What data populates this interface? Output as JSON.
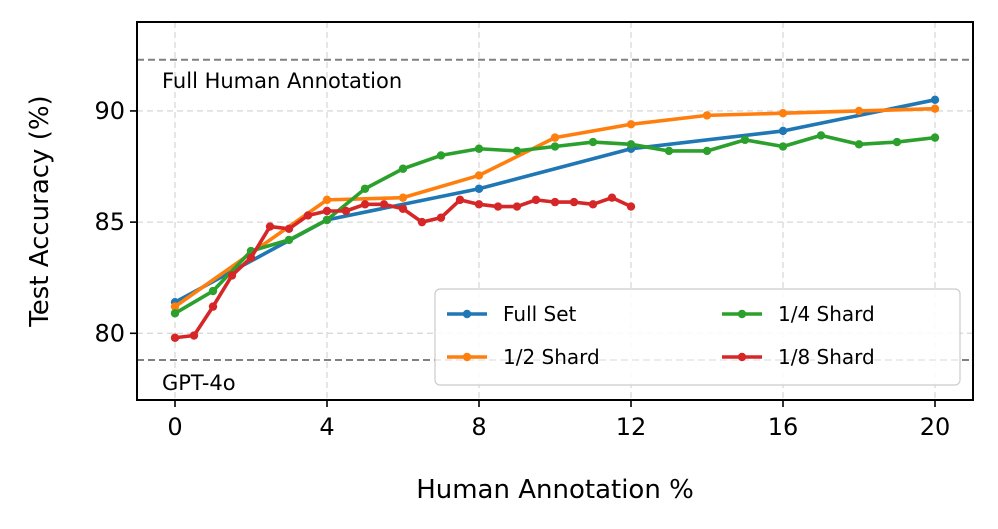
{
  "chart_data": {
    "type": "line",
    "title": "",
    "xlabel": "Human Annotation %",
    "ylabel": "Test Accuracy (%)",
    "xlim": [
      -1,
      21
    ],
    "ylim": [
      77,
      94
    ],
    "xticks": [
      0,
      4,
      8,
      12,
      16,
      20
    ],
    "yticks": [
      80,
      85,
      90
    ],
    "grid": true,
    "legend_position": "lower-right",
    "reference_lines": [
      {
        "name": "Full Human Annotation",
        "y": 92.3
      },
      {
        "name": "GPT-4o",
        "y": 78.8
      }
    ],
    "series": [
      {
        "name": "Full Set",
        "color": "#1f77b4",
        "x": [
          0,
          4,
          8,
          12,
          16,
          20
        ],
        "values": [
          81.4,
          85.1,
          86.5,
          88.3,
          89.1,
          90.5
        ]
      },
      {
        "name": "1/2 Shard",
        "color": "#ff7f0e",
        "x": [
          0,
          2,
          4,
          6,
          8,
          10,
          12,
          14,
          16,
          18,
          20
        ],
        "values": [
          81.2,
          83.6,
          86.0,
          86.1,
          87.1,
          88.8,
          89.4,
          89.8,
          89.9,
          90.0,
          90.1
        ]
      },
      {
        "name": "1/4 Shard",
        "color": "#2ca02c",
        "x": [
          0,
          1,
          2,
          3,
          4,
          5,
          6,
          7,
          8,
          9,
          10,
          11,
          12,
          13,
          14,
          15,
          16,
          17,
          18,
          19,
          20
        ],
        "values": [
          80.9,
          81.9,
          83.7,
          84.2,
          85.1,
          86.5,
          87.4,
          88.0,
          88.3,
          88.2,
          88.4,
          88.6,
          88.5,
          88.2,
          88.2,
          88.7,
          88.4,
          88.9,
          88.5,
          88.6,
          88.8
        ]
      },
      {
        "name": "1/8 Shard",
        "color": "#d62728",
        "x": [
          0,
          0.5,
          1,
          1.5,
          2,
          2.5,
          3,
          3.5,
          4,
          4.5,
          5,
          5.5,
          6,
          6.5,
          7,
          7.5,
          8,
          8.5,
          9,
          9.5,
          10,
          10.5,
          11,
          11.5,
          12
        ],
        "values": [
          79.8,
          79.9,
          81.2,
          82.6,
          83.4,
          84.8,
          84.7,
          85.3,
          85.5,
          85.5,
          85.8,
          85.8,
          85.6,
          85.0,
          85.2,
          86.0,
          85.8,
          85.7,
          85.7,
          86.0,
          85.9,
          85.9,
          85.8,
          86.1,
          85.7
        ]
      }
    ]
  }
}
